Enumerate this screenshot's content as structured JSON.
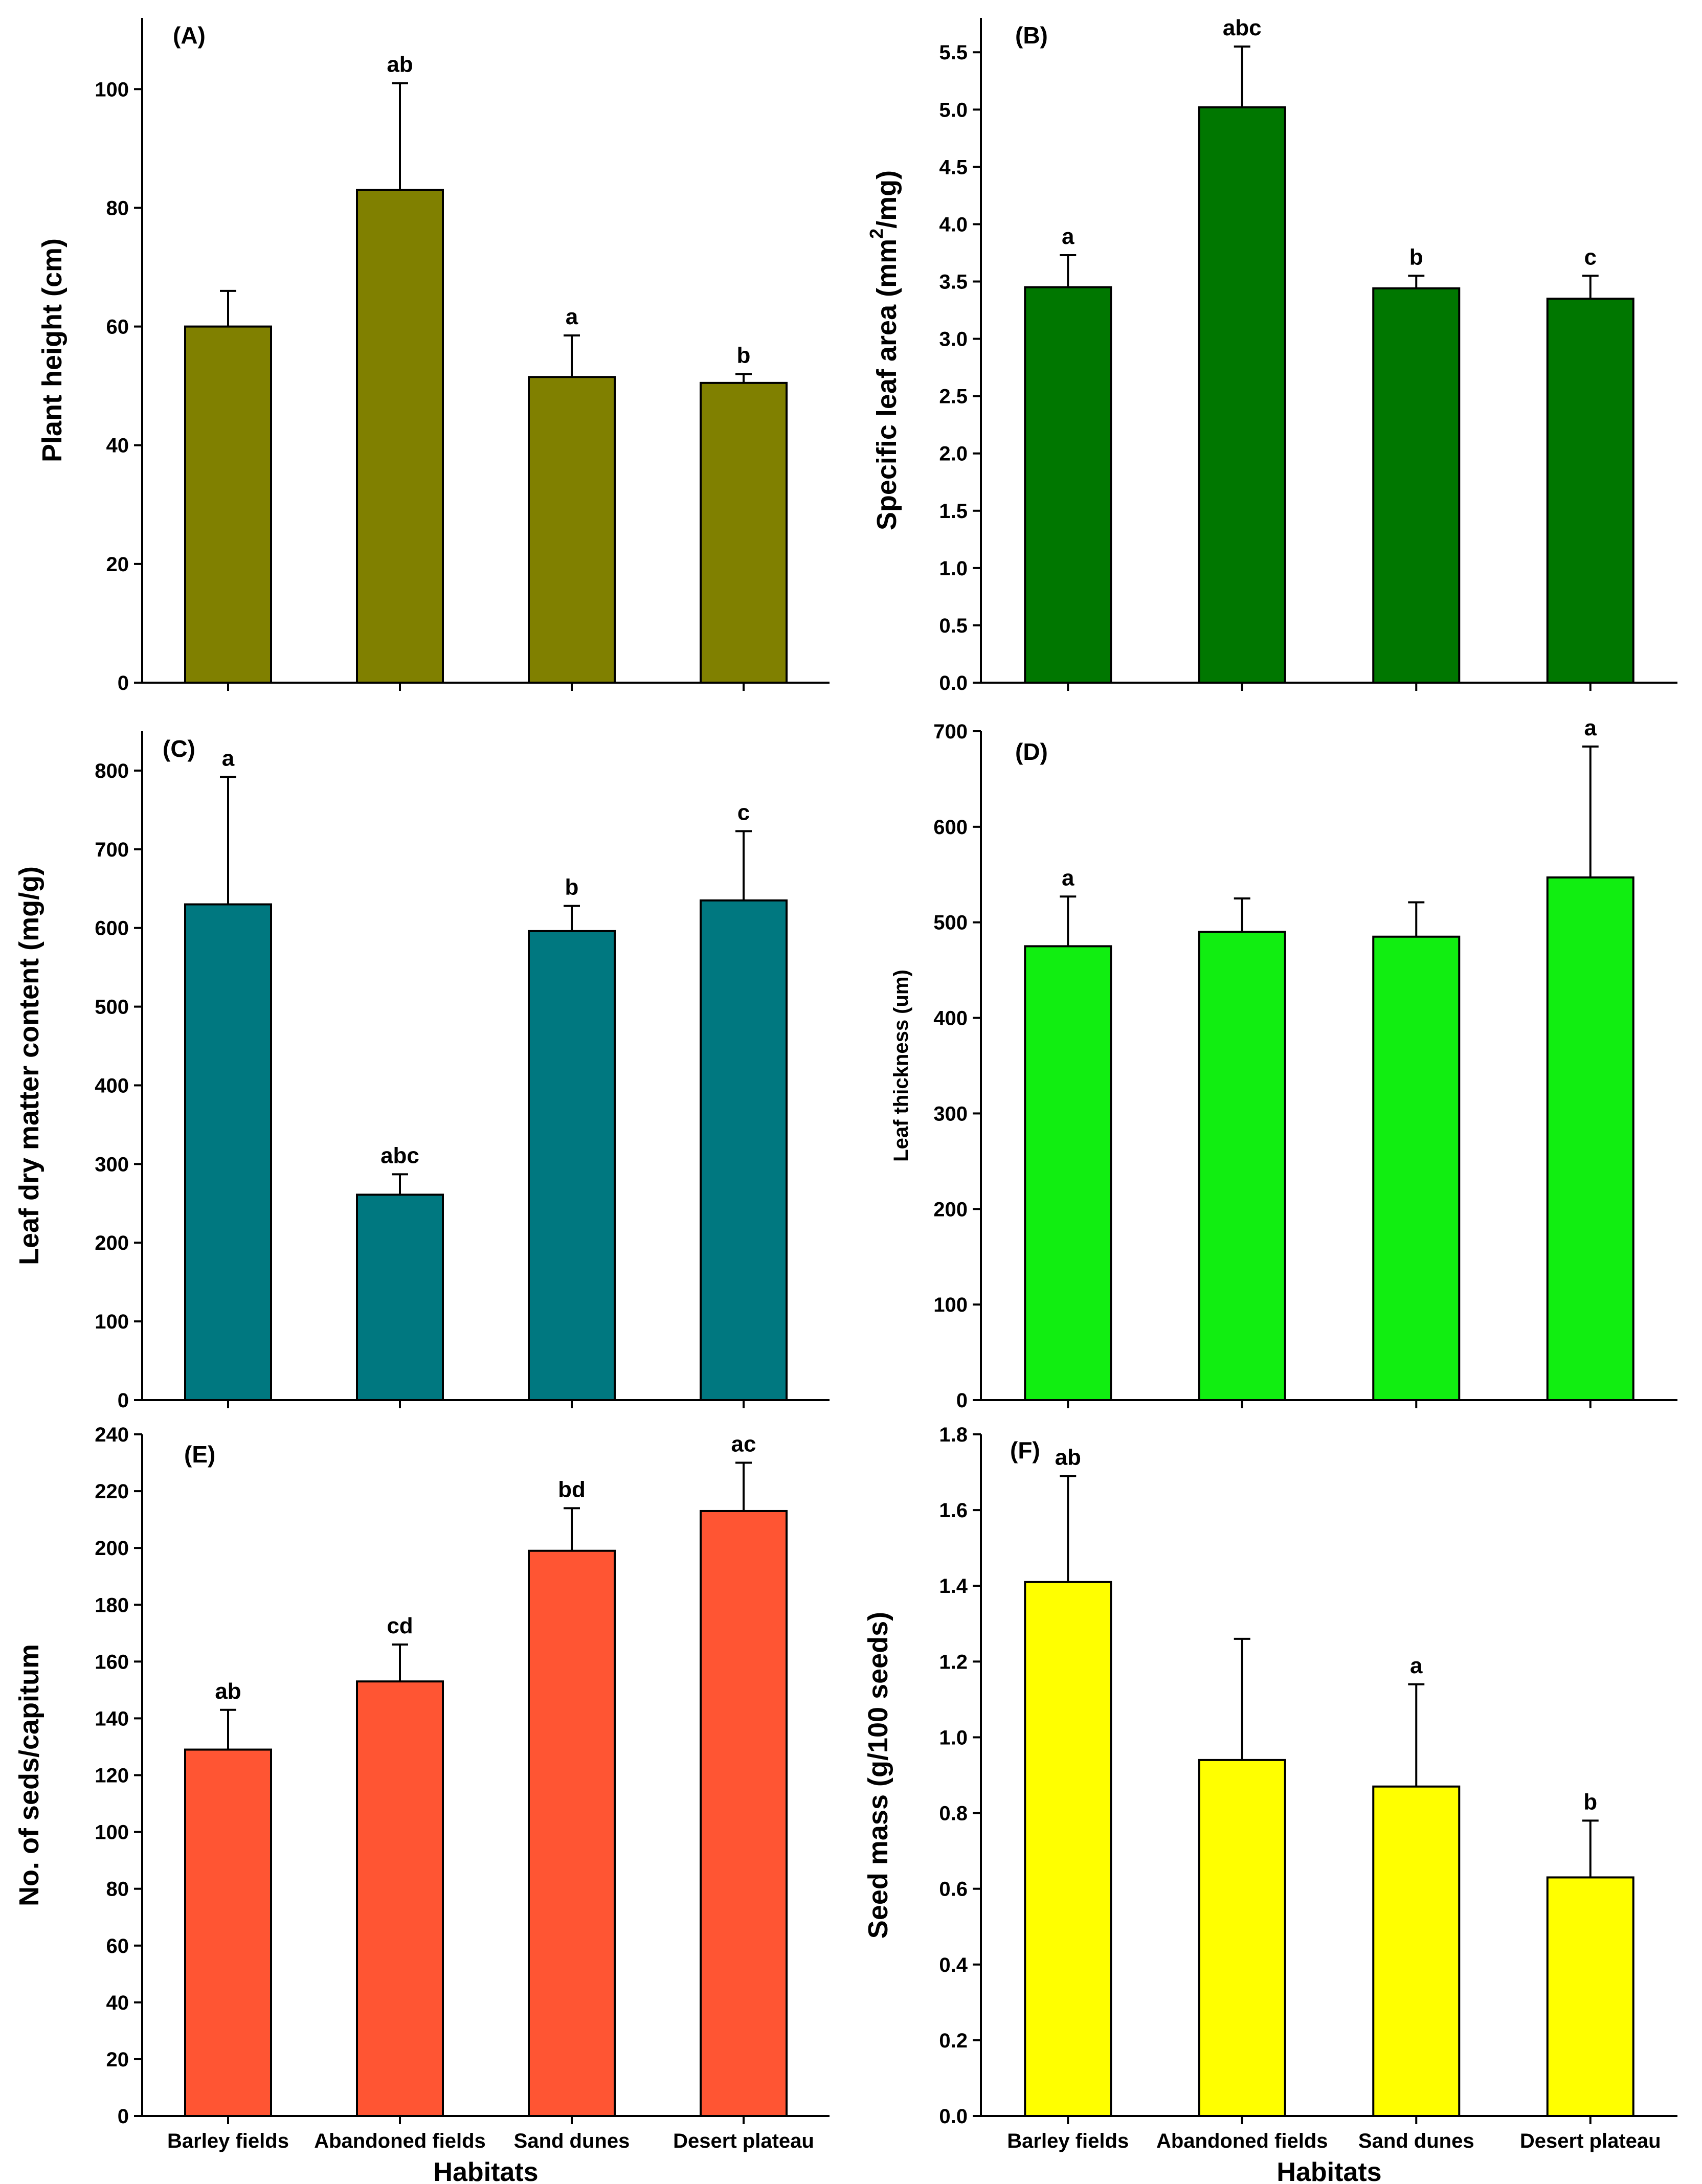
{
  "chart_data": [
    {
      "type": "bar",
      "panel_label": "(A)",
      "ylabel": "Plant height (cm)",
      "xlabel": "",
      "categories": [
        "Barley fields",
        "Abandoned fields",
        "Sand dunes",
        "Desert plateau"
      ],
      "values": [
        60,
        83,
        51.5,
        50.5
      ],
      "errors": [
        6,
        18,
        7,
        1.5
      ],
      "significance": [
        "",
        "ab",
        "a",
        "b"
      ],
      "ylim": [
        0,
        112
      ],
      "yticks": [
        0,
        20,
        40,
        60,
        80,
        100
      ],
      "ytick_labels": [
        "0",
        "20",
        "40",
        "60",
        "80",
        "100"
      ],
      "color": "#808000",
      "show_category_labels": false
    },
    {
      "type": "bar",
      "panel_label": "(B)",
      "ylabel": "Specific leaf area (mm2/mg)",
      "ylabel_parts": [
        "Specific leaf area (mm",
        "2",
        "/mg)"
      ],
      "xlabel": "",
      "categories": [
        "Barley fields",
        "Abandoned fields",
        "Sand dunes",
        "Desert plateau"
      ],
      "values": [
        3.45,
        5.02,
        3.44,
        3.35
      ],
      "errors": [
        0.28,
        0.53,
        0.11,
        0.2
      ],
      "significance": [
        "a",
        "abc",
        "b",
        "c"
      ],
      "ylim": [
        0,
        5.8
      ],
      "yticks": [
        0,
        0.5,
        1,
        1.5,
        2,
        2.5,
        3,
        3.5,
        4,
        4.5,
        5,
        5.5
      ],
      "ytick_labels": [
        "0.0",
        "0.5",
        "1.0",
        "1.5",
        "2.0",
        "2.5",
        "3.0",
        "3.5",
        "4.0",
        "4.5",
        "5.0",
        "5.5"
      ],
      "color": "#007700",
      "show_category_labels": false
    },
    {
      "type": "bar",
      "panel_label": "(C)",
      "ylabel": "Leaf dry matter content (mg/g)",
      "xlabel": "",
      "categories": [
        "Barley fields",
        "Abandoned fields",
        "Sand dunes",
        "Desert plateau"
      ],
      "values": [
        630,
        261,
        596,
        635
      ],
      "errors": [
        162,
        26,
        32,
        88
      ],
      "significance": [
        "a",
        "abc",
        "b",
        "c"
      ],
      "ylim": [
        0,
        850
      ],
      "yticks": [
        0,
        100,
        200,
        300,
        400,
        500,
        600,
        700,
        800
      ],
      "ytick_labels": [
        "0",
        "100",
        "200",
        "300",
        "400",
        "500",
        "600",
        "700",
        "800"
      ],
      "color": "#007880",
      "show_category_labels": false
    },
    {
      "type": "bar",
      "panel_label": "(D)",
      "ylabel": "Leaf thickness (um)",
      "xlabel": "",
      "categories": [
        "Barley fields",
        "Abandoned fields",
        "Sand dunes",
        "Desert plateau"
      ],
      "values": [
        475,
        490,
        485,
        547
      ],
      "errors": [
        52,
        35,
        36,
        137
      ],
      "significance": [
        "a",
        "",
        "",
        "a"
      ],
      "ylim": [
        0,
        700
      ],
      "yticks": [
        0,
        100,
        200,
        300,
        400,
        500,
        600,
        700
      ],
      "ytick_labels": [
        "0",
        "100",
        "200",
        "300",
        "400",
        "500",
        "600",
        "700"
      ],
      "color": "#11EE11",
      "show_category_labels": false
    },
    {
      "type": "bar",
      "panel_label": "(E)",
      "ylabel": "No. of seds/capitum",
      "xlabel": "Habitats",
      "categories": [
        "Barley fields",
        "Abandoned fields",
        "Sand dunes",
        "Desert plateau"
      ],
      "values": [
        129,
        153,
        199,
        213
      ],
      "errors": [
        14,
        13,
        15,
        17
      ],
      "significance": [
        "ab",
        "cd",
        "bd",
        "ac"
      ],
      "ylim": [
        0,
        240
      ],
      "yticks": [
        0,
        20,
        40,
        60,
        80,
        100,
        120,
        140,
        160,
        180,
        200,
        220,
        240
      ],
      "ytick_labels": [
        "0",
        "20",
        "40",
        "60",
        "80",
        "100",
        "120",
        "140",
        "160",
        "180",
        "200",
        "220",
        "240"
      ],
      "color": "#FF5533",
      "show_category_labels": true
    },
    {
      "type": "bar",
      "panel_label": "(F)",
      "ylabel": "Seed mass (g/100 seeds)",
      "xlabel": "Habitats",
      "categories": [
        "Barley fields",
        "Abandoned fields",
        "Sand dunes",
        "Desert plateau"
      ],
      "values": [
        1.41,
        0.94,
        0.87,
        0.63
      ],
      "errors": [
        0.28,
        0.32,
        0.27,
        0.15
      ],
      "significance": [
        "ab",
        "",
        "a",
        "b"
      ],
      "ylim": [
        0,
        1.8
      ],
      "yticks": [
        0,
        0.2,
        0.4,
        0.6,
        0.8,
        1,
        1.2,
        1.4,
        1.6,
        1.8
      ],
      "ytick_labels": [
        "0.0",
        "0.2",
        "0.4",
        "0.6",
        "0.8",
        "1.0",
        "1.2",
        "1.4",
        "1.6",
        "1.8"
      ],
      "color": "#FFFF00",
      "show_category_labels": true
    }
  ]
}
